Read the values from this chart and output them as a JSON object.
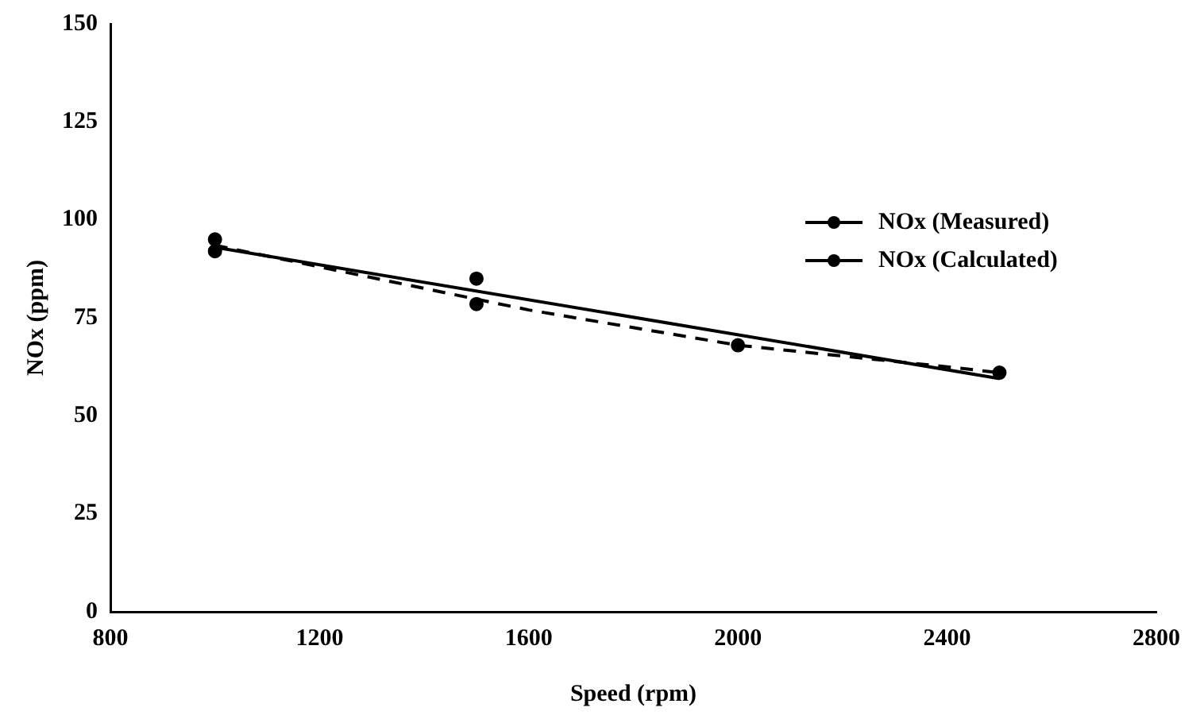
{
  "chart_data": {
    "type": "scatter",
    "xlabel": "Speed (rpm)",
    "ylabel": "NOx (ppm)",
    "xlim": [
      800,
      2800
    ],
    "xticks": [
      800,
      1200,
      1600,
      2000,
      2400,
      2800
    ],
    "ylim": [
      0,
      150
    ],
    "yticks": [
      0,
      25,
      50,
      75,
      100,
      125,
      150
    ],
    "grid": false,
    "legend": "right",
    "series": [
      {
        "name": "NOx (Measured)",
        "type": "scatter",
        "marker": "circle",
        "color": "#000000",
        "x": [
          1000,
          1500
        ],
        "values": [
          92,
          85
        ]
      },
      {
        "type": "line",
        "marker": "none",
        "color": "#000000",
        "line_style": "solid",
        "x": [
          1000,
          2500
        ],
        "values": [
          93,
          59.5
        ]
      },
      {
        "name": "NOx (Calculated)",
        "type": "scatter",
        "marker": "circle",
        "color": "#000000",
        "x": [
          1000,
          1500,
          2000,
          2500
        ],
        "values": [
          95,
          78.5,
          68,
          61
        ]
      },
      {
        "type": "line",
        "marker": "none",
        "color": "#000000",
        "line_style": "dashed",
        "x": [
          1000,
          1200,
          1600,
          2000,
          2400,
          2500
        ],
        "values": [
          93.5,
          88,
          77,
          68,
          62.5,
          61
        ]
      }
    ]
  }
}
